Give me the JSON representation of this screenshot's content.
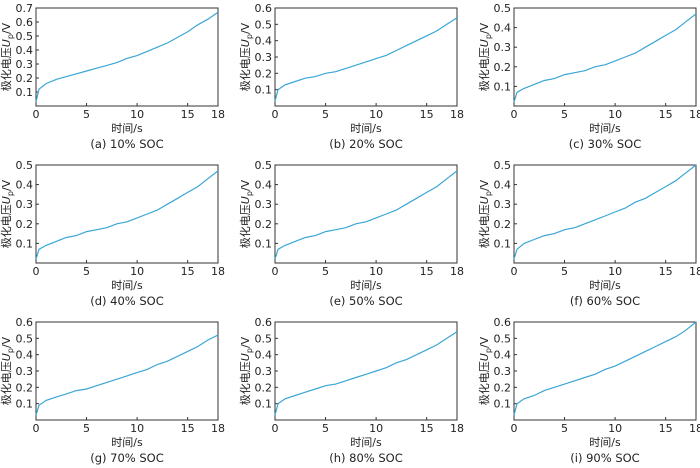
{
  "figure": {
    "axis_x_label": "时间/s",
    "axis_y_label_prefix": "极化电压",
    "axis_y_label_symbol": "U",
    "axis_y_label_subscript": "p",
    "axis_y_label_unit": "/V",
    "series_color": "#3aa6d6"
  },
  "chart_data": [
    {
      "type": "line",
      "caption": "(a) 10% SOC",
      "xlabel": "时间/s",
      "ylabel": "极化电压Up/V",
      "xlim": [
        0,
        18
      ],
      "ylim": [
        0,
        0.7
      ],
      "xticks": [
        0,
        5,
        10,
        15,
        18
      ],
      "yticks": [
        0.1,
        0.2,
        0.3,
        0.4,
        0.5,
        0.6,
        0.7
      ],
      "x": [
        0,
        0.3,
        1,
        2,
        3,
        4,
        5,
        6,
        7,
        8,
        9,
        10,
        11,
        12,
        13,
        14,
        15,
        16,
        17,
        18
      ],
      "y": [
        0.03,
        0.12,
        0.16,
        0.19,
        0.21,
        0.23,
        0.25,
        0.27,
        0.29,
        0.31,
        0.34,
        0.36,
        0.39,
        0.42,
        0.45,
        0.49,
        0.53,
        0.58,
        0.62,
        0.67
      ]
    },
    {
      "type": "line",
      "caption": "(b) 20% SOC",
      "xlabel": "时间/s",
      "ylabel": "极化电压Up/V",
      "xlim": [
        0,
        18
      ],
      "ylim": [
        0,
        0.6
      ],
      "xticks": [
        0,
        5,
        10,
        15,
        18
      ],
      "yticks": [
        0.1,
        0.2,
        0.3,
        0.4,
        0.5,
        0.6
      ],
      "x": [
        0,
        0.3,
        1,
        2,
        3,
        4,
        5,
        6,
        7,
        8,
        9,
        10,
        11,
        12,
        13,
        14,
        15,
        16,
        17,
        18
      ],
      "y": [
        0.03,
        0.1,
        0.13,
        0.15,
        0.17,
        0.18,
        0.2,
        0.21,
        0.23,
        0.25,
        0.27,
        0.29,
        0.31,
        0.34,
        0.37,
        0.4,
        0.43,
        0.46,
        0.5,
        0.54
      ]
    },
    {
      "type": "line",
      "caption": "(c) 30% SOC",
      "xlabel": "时间/s",
      "ylabel": "极化电压Up/V",
      "xlim": [
        0,
        18
      ],
      "ylim": [
        0,
        0.5
      ],
      "xticks": [
        0,
        5,
        10,
        15,
        18
      ],
      "yticks": [
        0.1,
        0.2,
        0.3,
        0.4,
        0.5
      ],
      "x": [
        0,
        0.3,
        1,
        2,
        3,
        4,
        5,
        6,
        7,
        8,
        9,
        10,
        11,
        12,
        13,
        14,
        15,
        16,
        17,
        18
      ],
      "y": [
        0.02,
        0.07,
        0.09,
        0.11,
        0.13,
        0.14,
        0.16,
        0.17,
        0.18,
        0.2,
        0.21,
        0.23,
        0.25,
        0.27,
        0.3,
        0.33,
        0.36,
        0.39,
        0.43,
        0.47
      ]
    },
    {
      "type": "line",
      "caption": "(d) 40% SOC",
      "xlabel": "时间/s",
      "ylabel": "极化电压Up/V",
      "xlim": [
        0,
        18
      ],
      "ylim": [
        0,
        0.5
      ],
      "xticks": [
        0,
        5,
        10,
        15,
        18
      ],
      "yticks": [
        0.1,
        0.2,
        0.3,
        0.4,
        0.5
      ],
      "x": [
        0,
        0.3,
        1,
        2,
        3,
        4,
        5,
        6,
        7,
        8,
        9,
        10,
        11,
        12,
        13,
        14,
        15,
        16,
        17,
        18
      ],
      "y": [
        0.02,
        0.07,
        0.09,
        0.11,
        0.13,
        0.14,
        0.16,
        0.17,
        0.18,
        0.2,
        0.21,
        0.23,
        0.25,
        0.27,
        0.3,
        0.33,
        0.36,
        0.39,
        0.43,
        0.47
      ]
    },
    {
      "type": "line",
      "caption": "(e) 50% SOC",
      "xlabel": "时间/s",
      "ylabel": "极化电压Up/V",
      "xlim": [
        0,
        18
      ],
      "ylim": [
        0,
        0.5
      ],
      "xticks": [
        0,
        5,
        10,
        15,
        18
      ],
      "yticks": [
        0.1,
        0.2,
        0.3,
        0.4,
        0.5
      ],
      "x": [
        0,
        0.3,
        1,
        2,
        3,
        4,
        5,
        6,
        7,
        8,
        9,
        10,
        11,
        12,
        13,
        14,
        15,
        16,
        17,
        18
      ],
      "y": [
        0.02,
        0.07,
        0.09,
        0.11,
        0.13,
        0.14,
        0.16,
        0.17,
        0.18,
        0.2,
        0.21,
        0.23,
        0.25,
        0.27,
        0.3,
        0.33,
        0.36,
        0.39,
        0.43,
        0.47
      ]
    },
    {
      "type": "line",
      "caption": "(f) 60% SOC",
      "xlabel": "时间/s",
      "ylabel": "极化电压Up/V",
      "xlim": [
        0,
        18
      ],
      "ylim": [
        0,
        0.5
      ],
      "xticks": [
        0,
        5,
        10,
        15,
        18
      ],
      "yticks": [
        0.1,
        0.2,
        0.3,
        0.4,
        0.5
      ],
      "x": [
        0,
        0.3,
        1,
        2,
        3,
        4,
        5,
        6,
        7,
        8,
        9,
        10,
        11,
        12,
        13,
        14,
        15,
        16,
        17,
        18
      ],
      "y": [
        0.02,
        0.07,
        0.1,
        0.12,
        0.14,
        0.15,
        0.17,
        0.18,
        0.2,
        0.22,
        0.24,
        0.26,
        0.28,
        0.31,
        0.33,
        0.36,
        0.39,
        0.42,
        0.46,
        0.5
      ]
    },
    {
      "type": "line",
      "caption": "(g) 70% SOC",
      "xlabel": "时间/s",
      "ylabel": "极化电压Up/V",
      "xlim": [
        0,
        18
      ],
      "ylim": [
        0,
        0.6
      ],
      "xticks": [
        0,
        5,
        10,
        15,
        18
      ],
      "yticks": [
        0.1,
        0.2,
        0.3,
        0.4,
        0.5,
        0.6
      ],
      "x": [
        0,
        0.3,
        1,
        2,
        3,
        4,
        5,
        6,
        7,
        8,
        9,
        10,
        11,
        12,
        13,
        14,
        15,
        16,
        17,
        18
      ],
      "y": [
        0.03,
        0.09,
        0.12,
        0.14,
        0.16,
        0.18,
        0.19,
        0.21,
        0.23,
        0.25,
        0.27,
        0.29,
        0.31,
        0.34,
        0.36,
        0.39,
        0.42,
        0.45,
        0.49,
        0.52
      ]
    },
    {
      "type": "line",
      "caption": "(h) 80% SOC",
      "xlabel": "时间/s",
      "ylabel": "极化电压Up/V",
      "xlim": [
        0,
        18
      ],
      "ylim": [
        0,
        0.6
      ],
      "xticks": [
        0,
        5,
        10,
        15,
        18
      ],
      "yticks": [
        0.1,
        0.2,
        0.3,
        0.4,
        0.5,
        0.6
      ],
      "x": [
        0,
        0.3,
        1,
        2,
        3,
        4,
        5,
        6,
        7,
        8,
        9,
        10,
        11,
        12,
        13,
        14,
        15,
        16,
        17,
        18
      ],
      "y": [
        0.03,
        0.1,
        0.13,
        0.15,
        0.17,
        0.19,
        0.21,
        0.22,
        0.24,
        0.26,
        0.28,
        0.3,
        0.32,
        0.35,
        0.37,
        0.4,
        0.43,
        0.46,
        0.5,
        0.54
      ]
    },
    {
      "type": "line",
      "caption": "(i) 90% SOC",
      "xlabel": "时间/s",
      "ylabel": "极化电压Up/V",
      "xlim": [
        0,
        18
      ],
      "ylim": [
        0,
        0.6
      ],
      "xticks": [
        0,
        5,
        10,
        15,
        18
      ],
      "yticks": [
        0.1,
        0.2,
        0.3,
        0.4,
        0.5,
        0.6
      ],
      "x": [
        0,
        0.3,
        1,
        2,
        3,
        4,
        5,
        6,
        7,
        8,
        9,
        10,
        11,
        12,
        13,
        14,
        15,
        16,
        17,
        18
      ],
      "y": [
        0.03,
        0.1,
        0.13,
        0.15,
        0.18,
        0.2,
        0.22,
        0.24,
        0.26,
        0.28,
        0.31,
        0.33,
        0.36,
        0.39,
        0.42,
        0.45,
        0.48,
        0.51,
        0.55,
        0.6
      ]
    }
  ]
}
